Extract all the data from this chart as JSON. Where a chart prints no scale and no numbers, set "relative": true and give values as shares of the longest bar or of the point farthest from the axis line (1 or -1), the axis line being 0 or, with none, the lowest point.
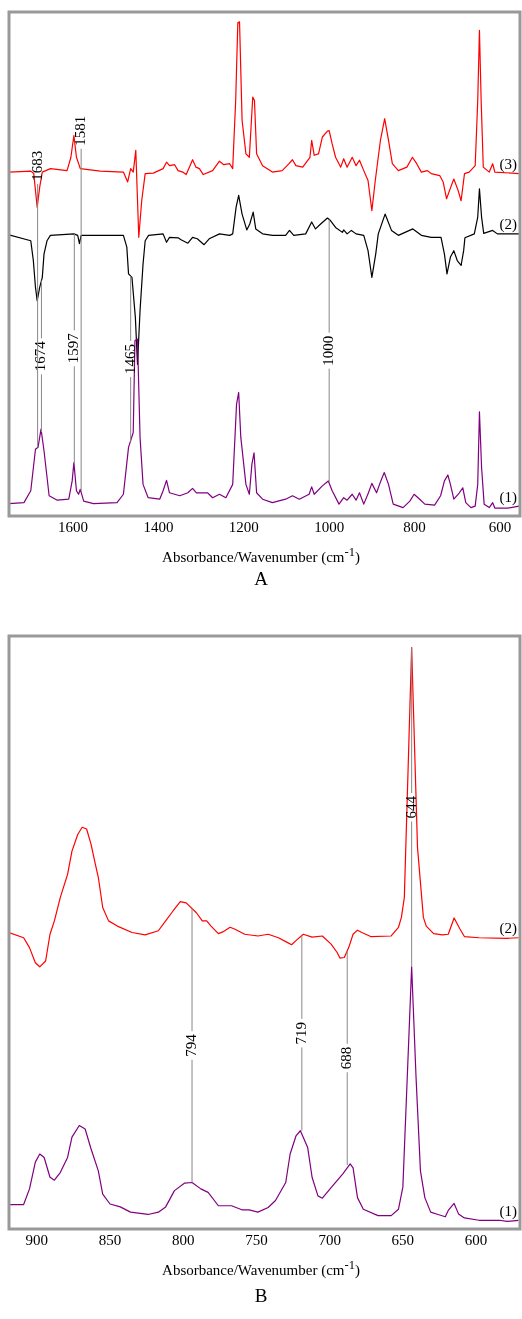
{
  "chart_data": [
    {
      "type": "line",
      "relative": true,
      "title": "A",
      "xlabel": "Absorbance/Wavenumber (cm$^{-1}$)",
      "xlim": [
        1750,
        553
      ],
      "xticks": [
        1600,
        1400,
        1200,
        1000,
        800,
        600
      ],
      "series": [
        {
          "name": "(1)",
          "color": "#800080",
          "x": [
            1750,
            1715,
            1699,
            1688,
            1682,
            1675,
            1668,
            1656,
            1637,
            1610,
            1602,
            1598,
            1592,
            1587,
            1583,
            1575,
            1552,
            1497,
            1482,
            1470,
            1459,
            1455,
            1449,
            1443,
            1436,
            1424,
            1397,
            1389,
            1381,
            1374,
            1350,
            1331,
            1320,
            1311,
            1285,
            1273,
            1257,
            1242,
            1226,
            1217,
            1212,
            1207,
            1195,
            1187,
            1181,
            1176,
            1170,
            1156,
            1133,
            1102,
            1086,
            1070,
            1047,
            1041,
            1035,
            1016,
            1002,
            993,
            977,
            966,
            958,
            946,
            937,
            929,
            919,
            908,
            900,
            889,
            879,
            871,
            861,
            850,
            827,
            811,
            801,
            788,
            776,
            753,
            739,
            730,
            722,
            716,
            708,
            695,
            687,
            680,
            668,
            658,
            652,
            648,
            643,
            637,
            625,
            617,
            612,
            582,
            555
          ],
          "values": [
            0.025,
            0.027,
            0.051,
            0.135,
            0.139,
            0.176,
            0.132,
            0.041,
            0.032,
            0.034,
            0.071,
            0.108,
            0.051,
            0.044,
            0.054,
            0.03,
            0.025,
            0.027,
            0.044,
            0.139,
            0.169,
            0.355,
            0.358,
            0.159,
            0.064,
            0.037,
            0.034,
            0.051,
            0.072,
            0.047,
            0.041,
            0.047,
            0.056,
            0.047,
            0.047,
            0.037,
            0.044,
            0.037,
            0.064,
            0.226,
            0.25,
            0.159,
            0.064,
            0.044,
            0.105,
            0.128,
            0.047,
            0.034,
            0.027,
            0.034,
            0.041,
            0.034,
            0.044,
            0.059,
            0.044,
            0.061,
            0.071,
            0.051,
            0.024,
            0.037,
            0.032,
            0.044,
            0.032,
            0.047,
            0.024,
            0.047,
            0.066,
            0.047,
            0.071,
            0.088,
            0.064,
            0.024,
            0.017,
            0.03,
            0.044,
            0.034,
            0.024,
            0.022,
            0.041,
            0.071,
            0.083,
            0.064,
            0.034,
            0.047,
            0.057,
            0.027,
            0.017,
            0.02,
            0.064,
            0.211,
            0.098,
            0.024,
            0.017,
            0.027,
            0.016,
            0.016,
            0.02
          ]
        },
        {
          "name": "(2)",
          "color": "#000000",
          "x": [
            1750,
            1699,
            1693,
            1688,
            1684,
            1678,
            1672,
            1668,
            1661,
            1653,
            1598,
            1589,
            1585,
            1581,
            1482,
            1474,
            1470,
            1462,
            1454,
            1449,
            1443,
            1436,
            1431,
            1423,
            1389,
            1381,
            1374,
            1354,
            1347,
            1331,
            1320,
            1309,
            1293,
            1281,
            1257,
            1233,
            1226,
            1218,
            1212,
            1204,
            1193,
            1186,
            1178,
            1172,
            1156,
            1133,
            1102,
            1093,
            1083,
            1055,
            1041,
            1032,
            1020,
            1004,
            997,
            985,
            969,
            966,
            958,
            948,
            937,
            919,
            909,
            900,
            891,
            885,
            869,
            854,
            838,
            804,
            784,
            761,
            738,
            730,
            724,
            716,
            708,
            700,
            691,
            685,
            682,
            660,
            652,
            648,
            643,
            638,
            617,
            606,
            555
          ],
          "values": [
            0.569,
            0.557,
            0.517,
            0.463,
            0.436,
            0.463,
            0.483,
            0.53,
            0.557,
            0.568,
            0.571,
            0.568,
            0.551,
            0.568,
            0.568,
            0.544,
            0.49,
            0.483,
            0.402,
            0.307,
            0.416,
            0.51,
            0.557,
            0.568,
            0.571,
            0.554,
            0.564,
            0.563,
            0.559,
            0.552,
            0.564,
            0.561,
            0.549,
            0.561,
            0.571,
            0.568,
            0.571,
            0.625,
            0.649,
            0.611,
            0.579,
            0.591,
            0.615,
            0.581,
            0.571,
            0.568,
            0.568,
            0.578,
            0.568,
            0.571,
            0.595,
            0.581,
            0.591,
            0.603,
            0.598,
            0.584,
            0.574,
            0.579,
            0.571,
            0.578,
            0.571,
            0.568,
            0.537,
            0.483,
            0.53,
            0.571,
            0.611,
            0.578,
            0.568,
            0.581,
            0.568,
            0.564,
            0.564,
            0.53,
            0.49,
            0.524,
            0.537,
            0.517,
            0.507,
            0.537,
            0.563,
            0.571,
            0.605,
            0.662,
            0.605,
            0.572,
            0.578,
            0.571,
            0.571
          ]
        },
        {
          "name": "(3)",
          "color": "#ff0000",
          "x": [
            1750,
            1699,
            1692,
            1684,
            1678,
            1672,
            1653,
            1614,
            1605,
            1598,
            1592,
            1583,
            1536,
            1482,
            1472,
            1465,
            1459,
            1453,
            1446,
            1439,
            1431,
            1412,
            1389,
            1381,
            1374,
            1362,
            1354,
            1343,
            1335,
            1326,
            1320,
            1312,
            1304,
            1295,
            1273,
            1257,
            1247,
            1233,
            1226,
            1219,
            1214,
            1210,
            1204,
            1195,
            1187,
            1179,
            1175,
            1170,
            1156,
            1133,
            1110,
            1094,
            1086,
            1078,
            1062,
            1045,
            1041,
            1035,
            1025,
            1016,
            1004,
            1000,
            993,
            985,
            973,
            966,
            958,
            946,
            937,
            929,
            919,
            909,
            900,
            892,
            880,
            870,
            861,
            852,
            838,
            818,
            805,
            795,
            784,
            770,
            761,
            741,
            733,
            725,
            715,
            708,
            698,
            691,
            683,
            672,
            658,
            652,
            648,
            644,
            639,
            625,
            617,
            612,
            555
          ],
          "values": [
            0.696,
            0.698,
            0.693,
            0.625,
            0.666,
            0.696,
            0.703,
            0.699,
            0.726,
            0.77,
            0.726,
            0.703,
            0.698,
            0.696,
            0.676,
            0.703,
            0.696,
            0.74,
            0.564,
            0.639,
            0.693,
            0.694,
            0.703,
            0.716,
            0.709,
            0.711,
            0.699,
            0.696,
            0.691,
            0.709,
            0.721,
            0.706,
            0.703,
            0.691,
            0.699,
            0.718,
            0.711,
            0.713,
            0.703,
            0.841,
            0.998,
            1,
            0.801,
            0.733,
            0.726,
            0.848,
            0.841,
            0.733,
            0.709,
            0.696,
            0.699,
            0.713,
            0.721,
            0.709,
            0.706,
            0.726,
            0.76,
            0.73,
            0.733,
            0.767,
            0.779,
            0.78,
            0.753,
            0.726,
            0.706,
            0.723,
            0.706,
            0.726,
            0.709,
            0.72,
            0.699,
            0.679,
            0.618,
            0.679,
            0.76,
            0.804,
            0.76,
            0.713,
            0.699,
            0.706,
            0.726,
            0.713,
            0.696,
            0.699,
            0.693,
            0.689,
            0.676,
            0.642,
            0.666,
            0.682,
            0.659,
            0.638,
            0.693,
            0.696,
            0.709,
            0.841,
            0.983,
            0.841,
            0.706,
            0.696,
            0.713,
            0.696,
            0.693
          ]
        }
      ],
      "annotations": [
        {
          "text": "1674",
          "x": 1674,
          "y": 0.17
        },
        {
          "text": "1465",
          "x": 1465,
          "y": 0.15
        },
        {
          "text": "1683",
          "x": 1683,
          "y": 0.139
        },
        {
          "text": "1597",
          "x": 1597,
          "y": 0.108
        },
        {
          "text": "1581",
          "x": 1581,
          "y": 0.05
        },
        {
          "text": "1000",
          "x": 1000,
          "y": 0.069
        }
      ]
    },
    {
      "type": "line",
      "relative": true,
      "title": "B",
      "xlabel": "Absorbance/Wavenumber (cm$^{-1}$)",
      "xlim": [
        919,
        570
      ],
      "xticks": [
        900,
        850,
        800,
        750,
        700,
        650,
        600
      ],
      "series": [
        {
          "name": "(1)",
          "color": "#800080",
          "x": [
            919,
            909,
            905,
            901,
            898,
            895,
            891,
            888,
            884,
            879,
            876,
            871,
            867,
            863,
            858,
            855,
            850,
            843,
            836,
            824,
            817,
            812,
            806,
            799,
            794,
            788,
            783,
            776,
            767,
            760,
            755,
            749,
            742,
            737,
            730,
            727,
            723,
            720,
            715,
            712,
            708,
            705,
            698,
            691,
            686,
            684,
            681,
            677,
            667,
            658,
            653,
            650,
            647,
            644,
            641,
            638,
            635,
            631,
            626,
            621,
            619,
            615,
            612,
            608,
            598,
            584,
            579,
            571
          ],
          "values": [
            0.042,
            0.042,
            0.069,
            0.115,
            0.129,
            0.123,
            0.089,
            0.084,
            0.097,
            0.123,
            0.158,
            0.178,
            0.172,
            0.138,
            0.1,
            0.06,
            0.043,
            0.038,
            0.029,
            0.025,
            0.029,
            0.038,
            0.066,
            0.079,
            0.08,
            0.069,
            0.063,
            0.04,
            0.04,
            0.033,
            0.033,
            0.029,
            0.037,
            0.049,
            0.08,
            0.129,
            0.16,
            0.169,
            0.14,
            0.089,
            0.057,
            0.053,
            0.074,
            0.095,
            0.112,
            0.105,
            0.054,
            0.034,
            0.023,
            0.023,
            0.034,
            0.072,
            0.261,
            0.451,
            0.261,
            0.1,
            0.054,
            0.029,
            0.025,
            0.021,
            0.032,
            0.044,
            0.026,
            0.019,
            0.015,
            0.015,
            0.013,
            0.015
          ]
        },
        {
          "name": "(2)",
          "color": "#ff0000",
          "x": [
            919,
            909,
            905,
            901,
            898,
            894,
            891,
            888,
            884,
            879,
            876,
            872,
            869,
            866,
            863,
            860,
            858,
            855,
            851,
            845,
            835,
            826,
            817,
            812,
            807,
            802,
            798,
            791,
            787,
            784,
            781,
            776,
            773,
            768,
            765,
            758,
            749,
            742,
            735,
            729,
            726,
            723,
            718,
            712,
            705,
            699,
            695,
            693,
            690,
            687,
            684,
            681,
            678,
            672,
            658,
            653,
            651,
            649,
            646,
            644,
            642,
            640,
            636,
            634,
            629,
            623,
            619,
            615,
            611,
            608,
            598,
            579,
            571
          ],
          "values": [
            0.51,
            0.501,
            0.484,
            0.458,
            0.451,
            0.461,
            0.507,
            0.53,
            0.57,
            0.61,
            0.65,
            0.679,
            0.691,
            0.688,
            0.662,
            0.627,
            0.605,
            0.553,
            0.53,
            0.521,
            0.51,
            0.506,
            0.513,
            0.53,
            0.547,
            0.563,
            0.561,
            0.544,
            0.53,
            0.53,
            0.521,
            0.508,
            0.511,
            0.519,
            0.516,
            0.507,
            0.504,
            0.507,
            0.501,
            0.493,
            0.489,
            0.496,
            0.507,
            0.502,
            0.504,
            0.49,
            0.476,
            0.466,
            0.467,
            0.484,
            0.507,
            0.514,
            0.51,
            0.503,
            0.504,
            0.519,
            0.536,
            0.57,
            0.828,
            1,
            0.828,
            0.656,
            0.536,
            0.521,
            0.508,
            0.506,
            0.507,
            0.535,
            0.516,
            0.503,
            0.501,
            0.5,
            0.501
          ]
        }
      ],
      "annotations": [
        {
          "text": "794",
          "x": 794,
          "y": 0.08
        },
        {
          "text": "719",
          "x": 719,
          "y": 0.169
        },
        {
          "text": "688",
          "x": 688,
          "y": 0.11
        },
        {
          "text": "644",
          "x": 644,
          "y": 0.451
        }
      ]
    }
  ]
}
